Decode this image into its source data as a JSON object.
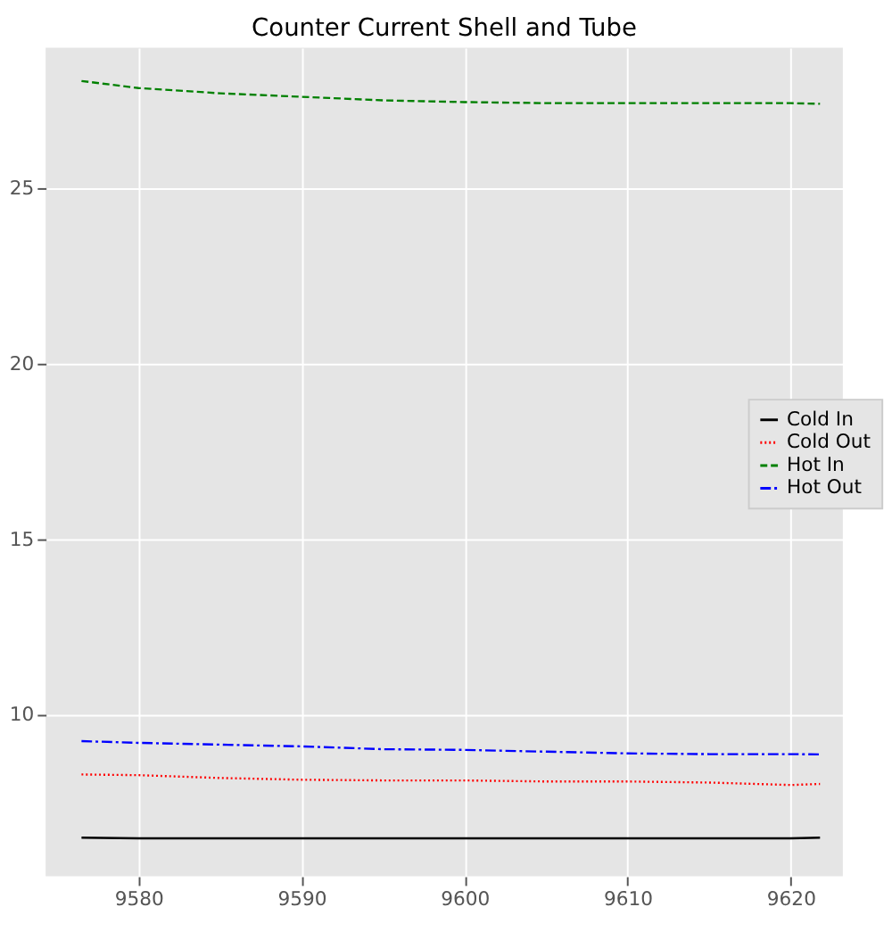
{
  "chart_data": {
    "type": "line",
    "title": "Counter Current Shell and Tube",
    "x": [
      9576.5,
      9580,
      9585,
      9590,
      9595,
      9600,
      9605,
      9610,
      9615,
      9620,
      9621.8
    ],
    "series": [
      {
        "name": "Cold In",
        "color": "#000000",
        "line_style": "solid",
        "values": [
          6.5,
          6.48,
          6.48,
          6.48,
          6.48,
          6.48,
          6.48,
          6.48,
          6.48,
          6.48,
          6.5
        ]
      },
      {
        "name": "Cold Out",
        "color": "#ff0000",
        "line_style": "dotted",
        "values": [
          8.3,
          8.28,
          8.2,
          8.15,
          8.13,
          8.13,
          8.1,
          8.1,
          8.07,
          8.0,
          8.03
        ]
      },
      {
        "name": "Hot In",
        "color": "#008000",
        "line_style": "dashed",
        "values": [
          28.05,
          27.85,
          27.7,
          27.6,
          27.5,
          27.45,
          27.42,
          27.42,
          27.42,
          27.42,
          27.4
        ]
      },
      {
        "name": "Hot Out",
        "color": "#0000ff",
        "line_style": "dashdot",
        "values": [
          9.25,
          9.2,
          9.15,
          9.1,
          9.02,
          9.0,
          8.95,
          8.9,
          8.88,
          8.88,
          8.87
        ]
      }
    ],
    "xlim": [
      9574.3,
      9623.2
    ],
    "ylim": [
      5.4,
      29.0
    ],
    "xticks": [
      9580,
      9590,
      9600,
      9610,
      9620
    ],
    "yticks": [
      10,
      15,
      20,
      25
    ],
    "grid": true,
    "legend": "right"
  }
}
